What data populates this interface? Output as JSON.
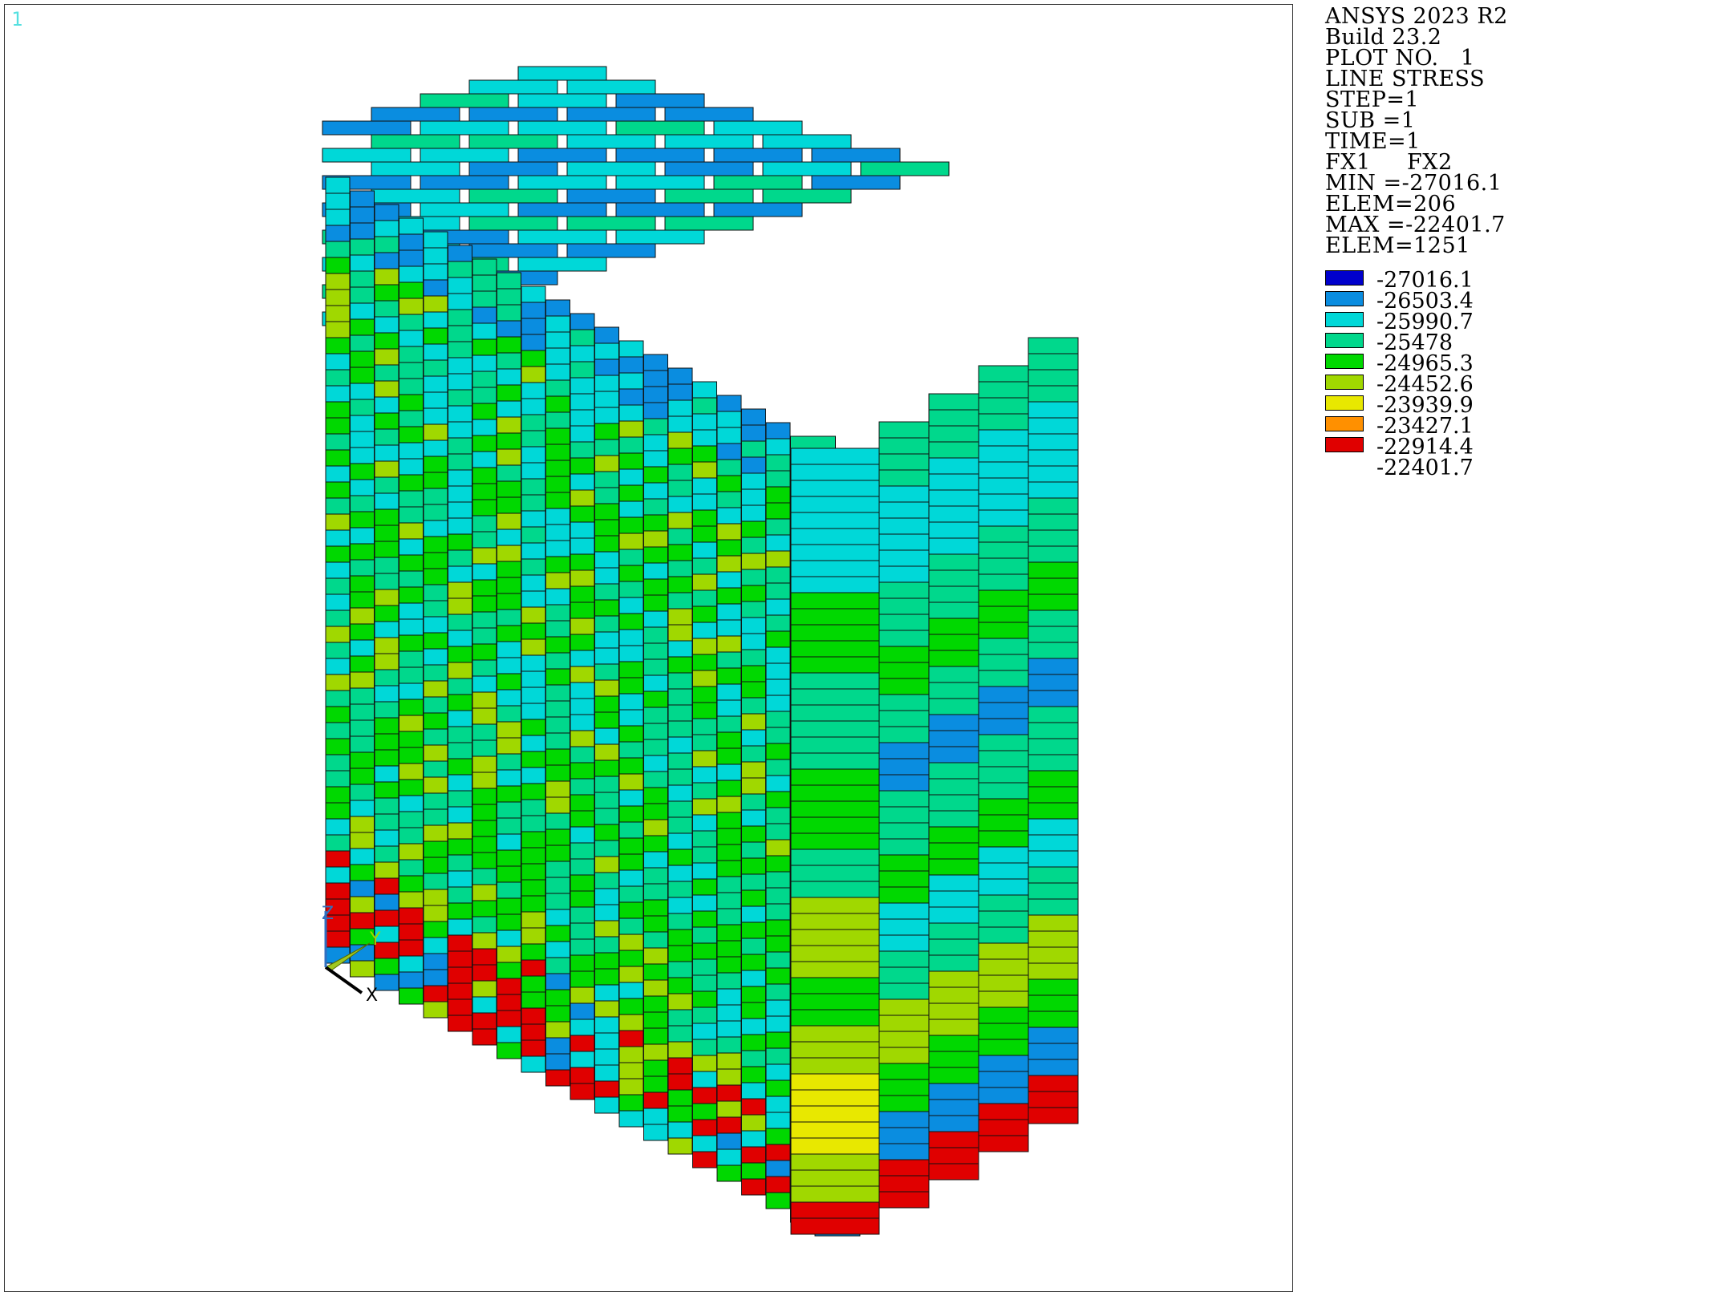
{
  "window": {
    "number": "1"
  },
  "info": {
    "title": "ANSYS 2023 R2",
    "build": "Build 23.2",
    "plot_no": "PLOT NO.   1",
    "plot_type": "LINE STRESS",
    "step": "STEP=1",
    "sub": "SUB =1",
    "time": "TIME=1",
    "items": "FX1     FX2",
    "min": "MIN =-27016.1",
    "min_elem": "ELEM=206",
    "max": "MAX =-22401.7",
    "max_elem": "ELEM=1251"
  },
  "legend": {
    "values": [
      "-27016.1",
      "-26503.4",
      "-25990.7",
      "-25478",
      "-24965.3",
      "-24452.6",
      "-23939.9",
      "-23427.1",
      "-22914.4",
      "-22401.7"
    ],
    "colors": [
      "#0000cc",
      "#0a8de0",
      "#00d8d8",
      "#00d88c",
      "#00d800",
      "#a0d800",
      "#e8e800",
      "#ff9000",
      "#e00000"
    ]
  },
  "triad": {
    "labels": [
      "Y",
      "Z",
      "X"
    ]
  },
  "colors": {
    "edge": "#111111",
    "panel_border": "#333333",
    "window_number": "#55e0e0"
  }
}
